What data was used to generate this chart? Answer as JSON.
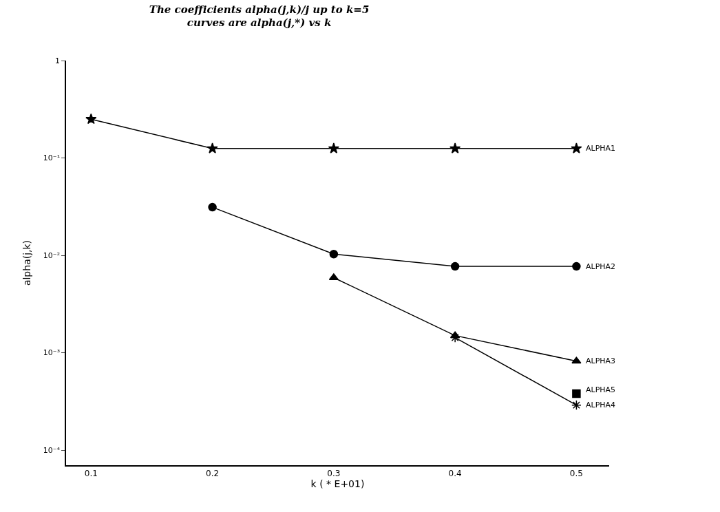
{
  "chart_data": {
    "type": "line",
    "title": "The coefficients alpha(j,k)/j up to k=5",
    "subtitle": "curves are alpha(j,*) vs k",
    "xlabel": "k ( * E+01)",
    "ylabel": "alpha(j,k)",
    "log": "y",
    "legend": false,
    "line_style": "solid",
    "xlim": [
      0.0794,
      0.527
    ],
    "xticks": [
      0.1,
      0.2,
      0.3,
      0.4,
      0.5
    ],
    "ylim": [
      7e-05,
      1
    ],
    "yticks": [
      1,
      {
        "value": 0.1,
        "label": "10⁻¹"
      },
      {
        "value": 0.01,
        "label": "10⁻²"
      },
      {
        "value": 0.001,
        "label": "10⁻³"
      },
      {
        "value": 0.0001,
        "label": "10⁻⁴"
      }
    ],
    "series": [
      {
        "name": "ALPHA1",
        "color": "#000000",
        "marker": "star",
        "x": [
          0.1,
          0.2,
          0.3,
          0.4,
          0.5
        ],
        "values": [
          0.25,
          0.125,
          0.125,
          0.125,
          0.125
        ]
      },
      {
        "name": "ALPHA2",
        "color": "#000000",
        "marker": "circle",
        "x": [
          0.2,
          0.3,
          0.4,
          0.5
        ],
        "values": [
          0.0312,
          0.0103,
          0.0077,
          0.0077
        ]
      },
      {
        "name": "ALPHA3",
        "color": "#000000",
        "marker": "triangle",
        "x": [
          0.3,
          0.4,
          0.5
        ],
        "values": [
          0.0059,
          0.0015,
          0.00082
        ]
      },
      {
        "name": "ALPHA4",
        "color": "#000000",
        "marker": "cross",
        "x": [
          0.4,
          0.5
        ],
        "values": [
          0.00143,
          0.00029
        ]
      },
      {
        "name": "ALPHA5",
        "color": "#000000",
        "marker": "square",
        "x": [
          0.5
        ],
        "values": [
          0.00038
        ]
      }
    ]
  }
}
